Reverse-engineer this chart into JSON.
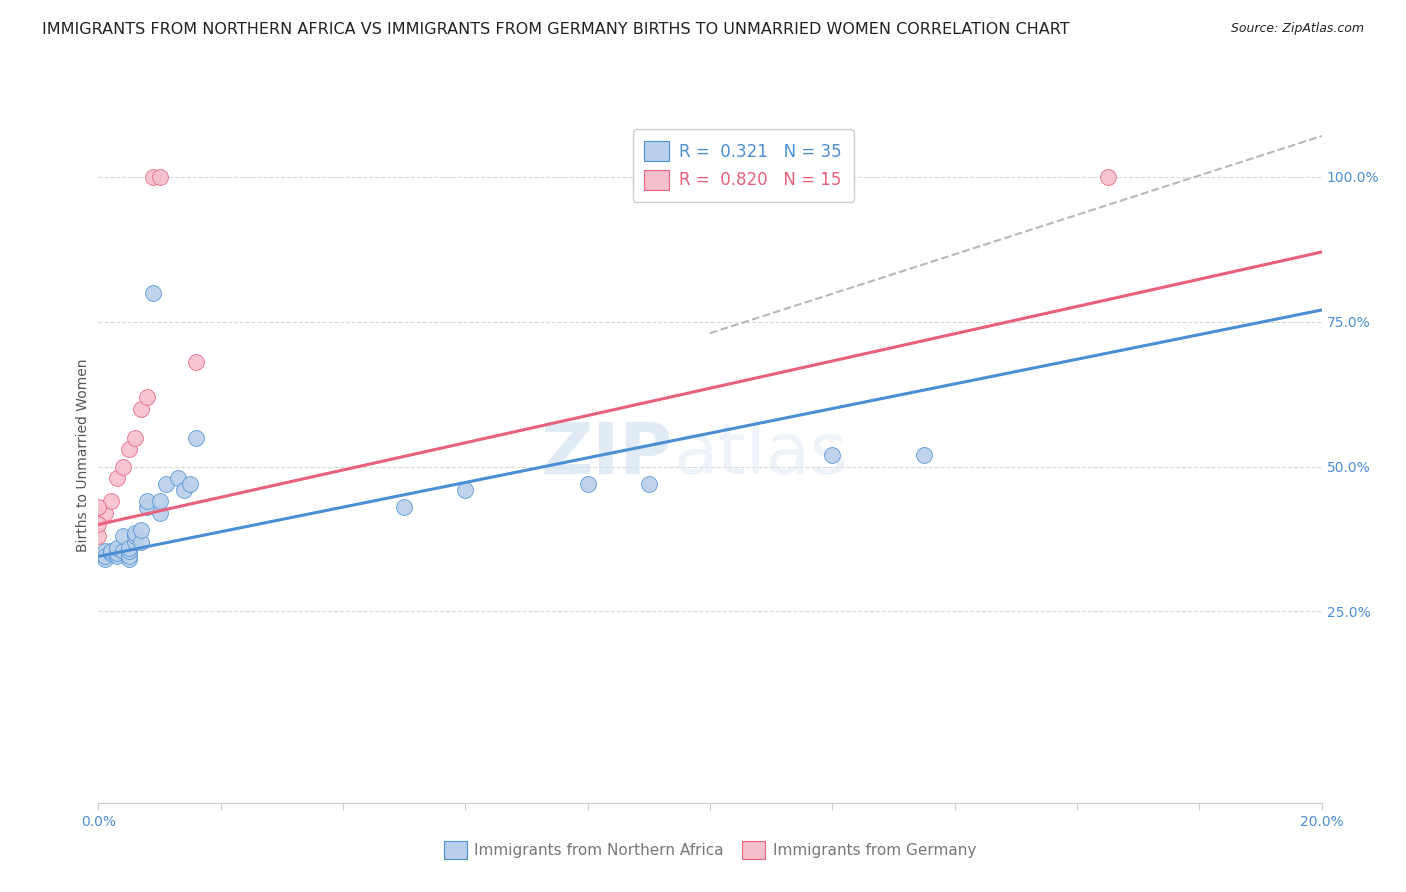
{
  "title": "IMMIGRANTS FROM NORTHERN AFRICA VS IMMIGRANTS FROM GERMANY BIRTHS TO UNMARRIED WOMEN CORRELATION CHART",
  "source": "Source: ZipAtlas.com",
  "ylabel": "Births to Unmarried Women",
  "y_ticks": [
    0.25,
    0.5,
    0.75,
    1.0
  ],
  "y_tick_labels": [
    "25.0%",
    "50.0%",
    "75.0%",
    "100.0%"
  ],
  "x_ticks": [
    0.0,
    0.02,
    0.04,
    0.06,
    0.08,
    0.1,
    0.12,
    0.14,
    0.16,
    0.18,
    0.2
  ],
  "xlim": [
    0.0,
    0.2
  ],
  "ylim": [
    -0.08,
    1.12
  ],
  "r_blue": "0.321",
  "n_blue": "35",
  "r_pink": "0.820",
  "n_pink": "15",
  "legend_label_blue": "Immigrants from Northern Africa",
  "legend_label_pink": "Immigrants from Germany",
  "blue_scatter_x": [
    0.001,
    0.001,
    0.001,
    0.002,
    0.002,
    0.003,
    0.003,
    0.003,
    0.004,
    0.004,
    0.005,
    0.005,
    0.005,
    0.005,
    0.006,
    0.006,
    0.006,
    0.007,
    0.007,
    0.008,
    0.008,
    0.009,
    0.01,
    0.01,
    0.011,
    0.013,
    0.014,
    0.015,
    0.016,
    0.05,
    0.06,
    0.08,
    0.09,
    0.12,
    0.135
  ],
  "blue_scatter_y": [
    0.355,
    0.34,
    0.345,
    0.35,
    0.355,
    0.345,
    0.35,
    0.36,
    0.355,
    0.38,
    0.34,
    0.345,
    0.355,
    0.36,
    0.37,
    0.38,
    0.385,
    0.37,
    0.39,
    0.43,
    0.44,
    0.8,
    0.42,
    0.44,
    0.47,
    0.48,
    0.46,
    0.47,
    0.55,
    0.43,
    0.46,
    0.47,
    0.47,
    0.52,
    0.52
  ],
  "pink_scatter_x": [
    0.001,
    0.002,
    0.003,
    0.004,
    0.005,
    0.006,
    0.007,
    0.008,
    0.009,
    0.01,
    0.016,
    0.165,
    0.0,
    0.0,
    0.0
  ],
  "pink_scatter_y": [
    0.42,
    0.44,
    0.48,
    0.5,
    0.53,
    0.55,
    0.6,
    0.62,
    1.0,
    1.0,
    0.68,
    1.0,
    0.38,
    0.4,
    0.43
  ],
  "blue_line_x": [
    0.0,
    0.2
  ],
  "blue_line_y": [
    0.345,
    0.77
  ],
  "pink_line_x": [
    0.0,
    0.2
  ],
  "pink_line_y": [
    0.4,
    0.87
  ],
  "diag_line_x": [
    0.1,
    0.2
  ],
  "diag_line_y": [
    0.73,
    1.07
  ],
  "watermark": "ZIPatlas",
  "blue_color": "#b8d0ea",
  "pink_color": "#f5bfcc",
  "blue_line_color": "#4a8fd4",
  "pink_line_color": "#e8607a",
  "diag_line_color": "#b8b8b8",
  "title_color": "#222222",
  "axis_color": "#4a8fd4",
  "grid_color": "#d8d8d8",
  "background_color": "#ffffff",
  "title_fontsize": 11.5,
  "source_fontsize": 9,
  "axis_label_fontsize": 10,
  "tick_fontsize": 10,
  "legend_fontsize": 12,
  "watermark_fontsize": 52,
  "marker_size": 130
}
